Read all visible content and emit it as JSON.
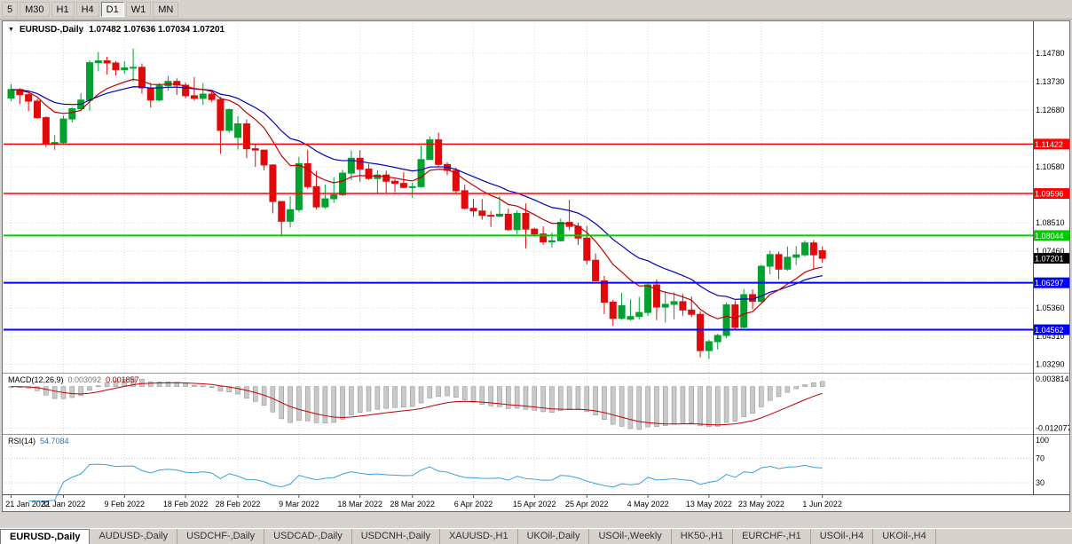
{
  "toolbar": {
    "periods": [
      "5",
      "M30",
      "H1",
      "H4",
      "D1",
      "W1",
      "MN"
    ],
    "active": "D1"
  },
  "chart": {
    "header": {
      "marker": "▼",
      "symbol": "EURUSD-,Daily",
      "ohlc": "1.07482 1.07636 1.07034 1.07201"
    }
  },
  "chart_data": {
    "type": "candlestick",
    "symbol": "EURUSD",
    "timeframe": "Daily",
    "ohlc_header": {
      "open": "1.07482",
      "high": "1.07636",
      "low": "1.07034",
      "close": "1.07201"
    },
    "candles": [
      [
        "21 Jan 2022",
        1.1312,
        1.1364,
        1.1301,
        1.1344
      ],
      [
        "24 Jan 2022",
        1.1344,
        1.1349,
        1.129,
        1.1325
      ],
      [
        "25 Jan 2022",
        1.1325,
        1.1335,
        1.1264,
        1.1301
      ],
      [
        "26 Jan 2022",
        1.1301,
        1.131,
        1.1235,
        1.124
      ],
      [
        "27 Jan 2022",
        1.124,
        1.1245,
        1.1131,
        1.1145
      ],
      [
        "28 Jan 2022",
        1.1145,
        1.1175,
        1.1121,
        1.1148
      ],
      [
        "31 Jan 2022",
        1.1148,
        1.1248,
        1.114,
        1.1235
      ],
      [
        "1 Feb 2022",
        1.1235,
        1.1279,
        1.1222,
        1.1273
      ],
      [
        "2 Feb 2022",
        1.1273,
        1.133,
        1.1267,
        1.1305
      ],
      [
        "3 Feb 2022",
        1.1305,
        1.1452,
        1.1266,
        1.1443
      ],
      [
        "4 Feb 2022",
        1.1443,
        1.1483,
        1.1411,
        1.145
      ],
      [
        "7 Feb 2022",
        1.145,
        1.1465,
        1.1399,
        1.1442
      ],
      [
        "8 Feb 2022",
        1.1442,
        1.1449,
        1.1396,
        1.1417
      ],
      [
        "9 Feb 2022",
        1.1417,
        1.1448,
        1.1402,
        1.1424
      ],
      [
        "10 Feb 2022",
        1.1424,
        1.1495,
        1.1374,
        1.1426
      ],
      [
        "11 Feb 2022",
        1.1426,
        1.144,
        1.1329,
        1.135
      ],
      [
        "14 Feb 2022",
        1.135,
        1.1369,
        1.1277,
        1.1305
      ],
      [
        "15 Feb 2022",
        1.1305,
        1.1368,
        1.13,
        1.1358
      ],
      [
        "16 Feb 2022",
        1.1358,
        1.1395,
        1.134,
        1.1374
      ],
      [
        "17 Feb 2022",
        1.1374,
        1.1385,
        1.1324,
        1.136
      ],
      [
        "18 Feb 2022",
        1.136,
        1.1369,
        1.1312,
        1.1321
      ],
      [
        "21 Feb 2022",
        1.1321,
        1.139,
        1.1303,
        1.1311
      ],
      [
        "22 Feb 2022",
        1.1311,
        1.1368,
        1.1287,
        1.1327
      ],
      [
        "23 Feb 2022",
        1.1327,
        1.1343,
        1.1298,
        1.1307
      ],
      [
        "24 Feb 2022",
        1.1307,
        1.1317,
        1.1106,
        1.1193
      ],
      [
        "25 Feb 2022",
        1.1193,
        1.1274,
        1.1184,
        1.127
      ],
      [
        "28 Feb 2022",
        1.1167,
        1.1246,
        1.1122,
        1.1217
      ],
      [
        "1 Mar 2022",
        1.1217,
        1.1233,
        1.109,
        1.1125
      ],
      [
        "2 Mar 2022",
        1.1125,
        1.1143,
        1.1058,
        1.112
      ],
      [
        "3 Mar 2022",
        1.112,
        1.1121,
        1.1045,
        1.1065
      ],
      [
        "4 Mar 2022",
        1.1065,
        1.1068,
        1.0886,
        1.093
      ],
      [
        "7 Mar 2022",
        1.093,
        1.0932,
        1.0806,
        1.0857
      ],
      [
        "8 Mar 2022",
        1.0857,
        1.095,
        1.0834,
        1.09
      ],
      [
        "9 Mar 2022",
        1.09,
        1.1095,
        1.0892,
        1.107
      ],
      [
        "10 Mar 2022",
        1.107,
        1.1121,
        1.0977,
        1.0985
      ],
      [
        "11 Mar 2022",
        1.0985,
        1.1043,
        1.0901,
        1.091
      ],
      [
        "14 Mar 2022",
        1.091,
        1.0993,
        1.0903,
        1.094
      ],
      [
        "15 Mar 2022",
        1.094,
        1.102,
        1.0925,
        1.0955
      ],
      [
        "16 Mar 2022",
        1.0955,
        1.1047,
        1.095,
        1.1035
      ],
      [
        "17 Mar 2022",
        1.1035,
        1.1119,
        1.101,
        1.109
      ],
      [
        "18 Mar 2022",
        1.109,
        1.112,
        1.1003,
        1.105
      ],
      [
        "21 Mar 2022",
        1.105,
        1.1069,
        1.101,
        1.1015
      ],
      [
        "22 Mar 2022",
        1.1015,
        1.1046,
        1.0961,
        1.1028
      ],
      [
        "23 Mar 2022",
        1.1028,
        1.1044,
        1.0963,
        1.1005
      ],
      [
        "24 Mar 2022",
        1.1005,
        1.1014,
        1.0965,
        1.0997
      ],
      [
        "25 Mar 2022",
        1.0997,
        1.1038,
        1.0979,
        1.0982
      ],
      [
        "28 Mar 2022",
        1.0982,
        1.0999,
        1.0944,
        1.0985
      ],
      [
        "29 Mar 2022",
        1.0985,
        1.1137,
        1.0982,
        1.1085
      ],
      [
        "30 Mar 2022",
        1.1085,
        1.1171,
        1.1084,
        1.1158
      ],
      [
        "31 Mar 2022",
        1.1158,
        1.1185,
        1.1061,
        1.1067
      ],
      [
        "1 Apr 2022",
        1.1067,
        1.1076,
        1.1027,
        1.1045
      ],
      [
        "4 Apr 2022",
        1.1045,
        1.1055,
        1.096,
        1.097
      ],
      [
        "5 Apr 2022",
        1.097,
        1.0992,
        1.09,
        1.0905
      ],
      [
        "6 Apr 2022",
        1.0905,
        1.0939,
        1.0874,
        1.0895
      ],
      [
        "7 Apr 2022",
        1.0895,
        1.0939,
        1.0863,
        1.0879
      ],
      [
        "8 Apr 2022",
        1.0879,
        1.0895,
        1.0836,
        1.0876
      ],
      [
        "11 Apr 2022",
        1.0876,
        1.095,
        1.0872,
        1.0883
      ],
      [
        "12 Apr 2022",
        1.0883,
        1.0904,
        1.0821,
        1.0826
      ],
      [
        "13 Apr 2022",
        1.0826,
        1.0897,
        1.081,
        1.0886
      ],
      [
        "14 Apr 2022",
        1.0886,
        1.0923,
        1.0757,
        1.0828
      ],
      [
        "15 Apr 2022",
        1.0828,
        1.0833,
        1.08,
        1.081
      ],
      [
        "18 Apr 2022",
        1.081,
        1.0838,
        1.077,
        1.0781
      ],
      [
        "19 Apr 2022",
        1.0781,
        1.0815,
        1.0761,
        1.0785
      ],
      [
        "20 Apr 2022",
        1.0785,
        1.0867,
        1.0782,
        1.0853
      ],
      [
        "21 Apr 2022",
        1.0853,
        1.0936,
        1.0824,
        1.0838
      ],
      [
        "22 Apr 2022",
        1.0838,
        1.0852,
        1.077,
        1.0795
      ],
      [
        "25 Apr 2022",
        1.0795,
        1.084,
        1.0697,
        1.0713
      ],
      [
        "26 Apr 2022",
        1.0713,
        1.0738,
        1.0635,
        1.0637
      ],
      [
        "27 Apr 2022",
        1.0637,
        1.0655,
        1.0514,
        1.0558
      ],
      [
        "28 Apr 2022",
        1.0558,
        1.0567,
        1.0471,
        1.0498
      ],
      [
        "29 Apr 2022",
        1.0498,
        1.0593,
        1.0492,
        1.0545
      ],
      [
        "2 May 2022",
        1.0495,
        1.0568,
        1.049,
        1.0505
      ],
      [
        "3 May 2022",
        1.0505,
        1.0578,
        1.0495,
        1.052
      ],
      [
        "4 May 2022",
        1.052,
        1.0632,
        1.0507,
        1.0622
      ],
      [
        "5 May 2022",
        1.0622,
        1.0642,
        1.0492,
        1.054
      ],
      [
        "6 May 2022",
        1.054,
        1.0599,
        1.0483,
        1.055
      ],
      [
        "9 May 2022",
        1.055,
        1.0594,
        1.0495,
        1.056
      ],
      [
        "10 May 2022",
        1.056,
        1.0588,
        1.0508,
        1.0529
      ],
      [
        "11 May 2022",
        1.0529,
        1.0579,
        1.0503,
        1.0513
      ],
      [
        "12 May 2022",
        1.0513,
        1.0525,
        1.0354,
        1.0379
      ],
      [
        "13 May 2022",
        1.0379,
        1.042,
        1.0348,
        1.0412
      ],
      [
        "16 May 2022",
        1.0412,
        1.0441,
        1.0383,
        1.0435
      ],
      [
        "17 May 2022",
        1.0435,
        1.0556,
        1.0425,
        1.0548
      ],
      [
        "18 May 2022",
        1.0548,
        1.0564,
        1.0459,
        1.0465
      ],
      [
        "19 May 2022",
        1.0465,
        1.0607,
        1.0462,
        1.0586
      ],
      [
        "20 May 2022",
        1.0586,
        1.0605,
        1.0532,
        1.0561
      ],
      [
        "23 May 2022",
        1.0561,
        1.0697,
        1.0556,
        1.0691
      ],
      [
        "24 May 2022",
        1.0691,
        1.0748,
        1.0661,
        1.0734
      ],
      [
        "25 May 2022",
        1.0734,
        1.0745,
        1.0642,
        1.068
      ],
      [
        "26 May 2022",
        1.068,
        1.0764,
        1.0674,
        1.0724
      ],
      [
        "27 May 2022",
        1.0724,
        1.0765,
        1.0696,
        1.0733
      ],
      [
        "30 May 2022",
        1.0733,
        1.0786,
        1.0726,
        1.0777
      ],
      [
        "31 May 2022",
        1.0777,
        1.0787,
        1.0678,
        1.0733
      ],
      [
        "1 Jun 2022",
        1.07482,
        1.07636,
        1.07034,
        1.07201
      ]
    ],
    "date_ticks": [
      {
        "label": "21 Jan 2022",
        "index": 0
      },
      {
        "label": "31 Jan 2022",
        "index": 6
      },
      {
        "label": "9 Feb 2022",
        "index": 13
      },
      {
        "label": "18 Feb 2022",
        "index": 20
      },
      {
        "label": "28 Feb 2022",
        "index": 26
      },
      {
        "label": "9 Mar 2022",
        "index": 33
      },
      {
        "label": "18 Mar 2022",
        "index": 40
      },
      {
        "label": "28 Mar 2022",
        "index": 46
      },
      {
        "label": "6 Apr 2022",
        "index": 53
      },
      {
        "label": "15 Apr 2022",
        "index": 60
      },
      {
        "label": "25 Apr 2022",
        "index": 66
      },
      {
        "label": "4 May 2022",
        "index": 73
      },
      {
        "label": "13 May 2022",
        "index": 80
      },
      {
        "label": "23 May 2022",
        "index": 86
      },
      {
        "label": "1 Jun 2022",
        "index": 93
      }
    ],
    "price_axis": {
      "labels": [
        {
          "text": "1.14780",
          "value": 1.1478
        },
        {
          "text": "1.13730",
          "value": 1.1373
        },
        {
          "text": "1.12680",
          "value": 1.1268
        },
        {
          "text": "1.10580",
          "value": 1.1058
        },
        {
          "text": "1.08510",
          "value": 1.0851
        },
        {
          "text": "1.07460",
          "value": 1.0746
        },
        {
          "text": "1.05360",
          "value": 1.0536
        },
        {
          "text": "1.04310",
          "value": 1.0431
        },
        {
          "text": "1.03290",
          "value": 1.0329
        }
      ],
      "gridlines": [
        1.1478,
        1.1373,
        1.1268,
        1.1163,
        1.1058,
        1.0953,
        1.0851,
        1.0746,
        1.0641,
        1.0536,
        1.0431,
        1.0329
      ]
    },
    "hlines": [
      {
        "price": 1.11422,
        "label": "1.11422",
        "color": "#ff0000",
        "width": 1.5
      },
      {
        "price": 1.09596,
        "label": "1.09596",
        "color": "#ff0000",
        "width": 1.5
      },
      {
        "price": 1.08044,
        "label": "1.08044",
        "color": "#00cc00",
        "width": 2
      },
      {
        "price": 1.06297,
        "label": "1.06297",
        "color": "#0000ff",
        "width": 2
      },
      {
        "price": 1.04562,
        "label": "1.04562",
        "color": "#0000ff",
        "width": 2
      }
    ],
    "current_price": {
      "value": 1.07201,
      "label": "1.07201"
    },
    "moving_averages": [
      {
        "name": "fast-ma",
        "period": 10,
        "method": "ema",
        "color": "#c00000"
      },
      {
        "name": "slow-ma",
        "period": 20,
        "method": "ema",
        "color": "#0000bb"
      }
    ],
    "indicators": {
      "macd": {
        "label": "MACD(12,26,9)",
        "value_main": "0.003092",
        "value_signal": "0.001857",
        "fast": 12,
        "slow": 26,
        "signal": 9,
        "axis_labels": [
          {
            "text": "0.003814",
            "value": 0.003814
          },
          {
            "text": "-0.012077",
            "value": -0.012077
          }
        ]
      },
      "rsi": {
        "label": "RSI(14)",
        "value": "54.7084",
        "period": 14,
        "axis_labels": [
          {
            "text": "100",
            "value": 100
          },
          {
            "text": "70",
            "value": 70
          },
          {
            "text": "30",
            "value": 30
          }
        ],
        "levels": [
          70,
          30
        ]
      }
    },
    "colors": {
      "background": "#ffffff",
      "grid": "#d8d8d8",
      "candle_up": "#00a12e",
      "candle_down": "#e00a0a",
      "ma_fast": "#c00000",
      "ma_slow": "#0000bb",
      "macd_bar": "#c9c9c9",
      "macd_bar_border": "#8a8a8a",
      "macd_signal": "#c00000",
      "rsi_line": "#3aa0dc",
      "axis_text": "#000000",
      "current_price_bg": "#000000"
    }
  },
  "tabs": [
    {
      "label": "EURUSD-,Daily",
      "active": true
    },
    {
      "label": "AUDUSD-,Daily",
      "active": false
    },
    {
      "label": "USDCHF-,Daily",
      "active": false
    },
    {
      "label": "USDCAD-,Daily",
      "active": false
    },
    {
      "label": "USDCNH-,Daily",
      "active": false
    },
    {
      "label": "XAUUSD-,H1",
      "active": false
    },
    {
      "label": "UKOil-,Daily",
      "active": false
    },
    {
      "label": "USOil-,Weekly",
      "active": false
    },
    {
      "label": "HK50-,H1",
      "active": false
    },
    {
      "label": "EURCHF-,H1",
      "active": false
    },
    {
      "label": "USOil-,H4",
      "active": false
    },
    {
      "label": "UKOil-,H4",
      "active": false
    }
  ]
}
